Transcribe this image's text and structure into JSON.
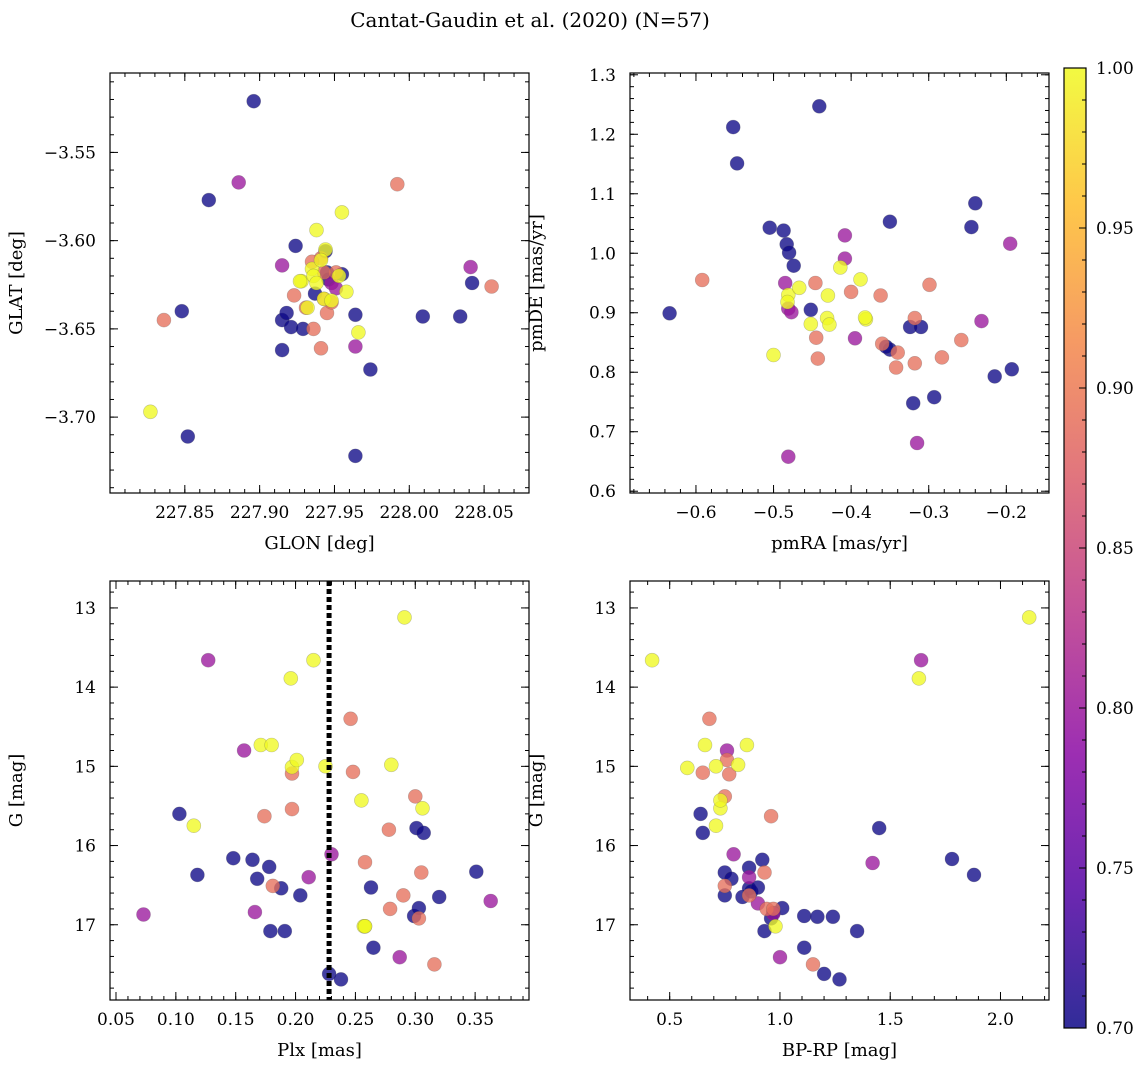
{
  "title": "Cantat-Gaudin et al. (2020) (N=57)",
  "colors": {
    "colormap": [
      "#0d0887",
      "#5302a3",
      "#8b0aa5",
      "#b83289",
      "#db5c68",
      "#f48849",
      "#febd2a",
      "#f0f921"
    ],
    "vline": "#000000",
    "marker_alpha": 0.78
  },
  "colorbar": {
    "min": 0.7,
    "max": 1.0,
    "ticks": [
      0.7,
      0.75,
      0.8,
      0.85,
      0.9,
      0.95,
      1.0
    ],
    "tick_labels": [
      "0.70",
      "0.75",
      "0.80",
      "0.85",
      "0.90",
      "0.95",
      "1.00"
    ]
  },
  "chart_data": [
    {
      "id": "pos",
      "type": "scatter",
      "xlabel": "GLON [deg]",
      "ylabel": "GLAT [deg]",
      "xlim": [
        227.8,
        228.08
      ],
      "ylim": [
        -3.743,
        -3.505
      ],
      "invert_y": false,
      "xticks": [
        227.85,
        227.9,
        227.95,
        228.0,
        228.05
      ],
      "xtick_labels": [
        "227.85",
        "227.90",
        "227.95",
        "228.00",
        "228.05"
      ],
      "yticks": [
        -3.7,
        -3.65,
        -3.6,
        -3.55
      ],
      "ytick_labels": [
        "−3.70",
        "−3.65",
        "−3.60",
        "−3.55"
      ],
      "x": [
        227.896,
        227.866,
        227.848,
        227.852,
        227.915,
        227.924,
        227.918,
        227.921,
        227.929,
        227.915,
        227.937,
        227.944,
        227.955,
        227.964,
        227.974,
        227.964,
        228.009,
        228.034,
        228.042,
        227.945,
        227.946,
        227.886,
        227.915,
        227.948,
        227.951,
        227.964,
        228.041,
        227.992,
        228.055,
        227.836,
        227.923,
        227.931,
        227.936,
        227.941,
        227.941,
        227.943,
        227.945,
        227.951,
        227.948,
        227.943,
        227.935,
        227.955,
        227.928,
        227.938,
        227.953,
        227.935,
        227.927,
        227.944,
        227.943,
        227.948,
        227.958,
        227.966,
        227.827,
        227.932,
        227.941,
        227.936,
        227.938
      ],
      "y": [
        -3.521,
        -3.577,
        -3.64,
        -3.711,
        -3.645,
        -3.603,
        -3.641,
        -3.649,
        -3.65,
        -3.662,
        -3.63,
        -3.606,
        -3.619,
        -3.642,
        -3.673,
        -3.722,
        -3.643,
        -3.643,
        -3.624,
        -3.618,
        -3.622,
        -3.567,
        -3.614,
        -3.624,
        -3.627,
        -3.66,
        -3.615,
        -3.568,
        -3.626,
        -3.645,
        -3.631,
        -3.638,
        -3.65,
        -3.661,
        -3.61,
        -3.633,
        -3.641,
        -3.618,
        -3.635,
        -3.618,
        -3.612,
        -3.584,
        -3.623,
        -3.594,
        -3.62,
        -3.616,
        -3.623,
        -3.605,
        -3.633,
        -3.634,
        -3.629,
        -3.652,
        -3.697,
        -3.638,
        -3.611,
        -3.62,
        -3.624
      ],
      "c": [
        0.7,
        0.7,
        0.7,
        0.7,
        0.7,
        0.7,
        0.7,
        0.7,
        0.7,
        0.7,
        0.7,
        0.7,
        0.7,
        0.7,
        0.7,
        0.7,
        0.7,
        0.7,
        0.7,
        0.7,
        0.7,
        0.8,
        0.8,
        0.8,
        0.8,
        0.8,
        0.8,
        0.89,
        0.89,
        0.89,
        0.89,
        0.89,
        0.89,
        0.89,
        0.89,
        0.89,
        0.89,
        0.89,
        0.89,
        0.89,
        0.89,
        1.0,
        1.0,
        1.0,
        1.0,
        1.0,
        1.0,
        1.0,
        1.0,
        1.0,
        1.0,
        1.0,
        1.0,
        1.0,
        1.0,
        1.0,
        1.0
      ]
    },
    {
      "id": "pm",
      "type": "scatter",
      "xlabel": "pmRA [mas/yr]",
      "ylabel": "pmDE [mas/yr]",
      "xlim": [
        -0.685,
        -0.145
      ],
      "ylim": [
        0.597,
        1.303
      ],
      "invert_y": false,
      "xticks": [
        -0.6,
        -0.5,
        -0.4,
        -0.3,
        -0.2
      ],
      "xtick_labels": [
        "−0.6",
        "−0.5",
        "−0.4",
        "−0.3",
        "−0.2"
      ],
      "yticks": [
        0.6,
        0.7,
        0.8,
        0.9,
        1.0,
        1.1,
        1.2,
        1.3
      ],
      "ytick_labels": [
        "0.6",
        "0.7",
        "0.8",
        "0.9",
        "1.0",
        "1.1",
        "1.2",
        "1.3"
      ],
      "x": [
        -0.634,
        -0.552,
        -0.547,
        -0.505,
        -0.487,
        -0.483,
        -0.48,
        -0.474,
        -0.452,
        -0.441,
        -0.35,
        -0.24,
        -0.245,
        -0.35,
        -0.324,
        -0.31,
        -0.293,
        -0.32,
        -0.215,
        -0.193,
        -0.355,
        -0.408,
        -0.485,
        -0.481,
        -0.477,
        -0.395,
        -0.315,
        -0.195,
        -0.232,
        -0.481,
        -0.408,
        -0.592,
        -0.446,
        -0.4,
        -0.362,
        -0.445,
        -0.36,
        -0.342,
        -0.34,
        -0.318,
        -0.283,
        -0.299,
        -0.258,
        -0.318,
        -0.443,
        -0.5,
        -0.481,
        -0.482,
        -0.467,
        -0.452,
        -0.43,
        -0.431,
        -0.428,
        -0.414,
        -0.388,
        -0.381,
        -0.382
      ],
      "y": [
        0.899,
        1.212,
        1.151,
        1.043,
        1.038,
        1.015,
        1.001,
        0.979,
        0.905,
        1.247,
        1.053,
        1.084,
        1.044,
        0.838,
        0.876,
        0.876,
        0.758,
        0.748,
        0.793,
        0.805,
        0.843,
        1.03,
        0.95,
        0.907,
        0.901,
        0.857,
        0.681,
        1.016,
        0.886,
        0.658,
        0.991,
        0.955,
        0.95,
        0.935,
        0.929,
        0.858,
        0.848,
        0.808,
        0.833,
        0.891,
        0.825,
        0.947,
        0.854,
        0.815,
        0.823,
        0.829,
        0.93,
        0.918,
        0.942,
        0.881,
        0.929,
        0.891,
        0.88,
        0.976,
        0.956,
        0.889,
        0.892
      ],
      "c": [
        0.7,
        0.7,
        0.7,
        0.7,
        0.7,
        0.7,
        0.7,
        0.7,
        0.7,
        0.7,
        0.7,
        0.7,
        0.7,
        0.7,
        0.7,
        0.7,
        0.7,
        0.7,
        0.7,
        0.7,
        0.7,
        0.8,
        0.8,
        0.8,
        0.8,
        0.8,
        0.8,
        0.8,
        0.8,
        0.8,
        0.8,
        0.89,
        0.89,
        0.89,
        0.89,
        0.89,
        0.89,
        0.89,
        0.89,
        0.89,
        0.89,
        0.89,
        0.89,
        0.89,
        0.89,
        1.0,
        1.0,
        1.0,
        1.0,
        1.0,
        1.0,
        1.0,
        1.0,
        1.0,
        1.0,
        1.0,
        1.0
      ]
    },
    {
      "id": "plx",
      "type": "scatter",
      "xlabel": "Plx [mas]",
      "ylabel": "G [mag]",
      "xlim": [
        0.045,
        0.395
      ],
      "ylim": [
        12.66,
        17.95
      ],
      "invert_y": true,
      "xticks": [
        0.05,
        0.1,
        0.15,
        0.2,
        0.25,
        0.3,
        0.35
      ],
      "xtick_labels": [
        "0.05",
        "0.10",
        "0.15",
        "0.20",
        "0.25",
        "0.30",
        "0.35"
      ],
      "yticks": [
        13,
        14,
        15,
        16,
        17
      ],
      "ytick_labels": [
        "13",
        "14",
        "15",
        "16",
        "17"
      ],
      "vline": 0.228,
      "x": [
        0.103,
        0.118,
        0.148,
        0.164,
        0.168,
        0.178,
        0.188,
        0.204,
        0.179,
        0.191,
        0.263,
        0.301,
        0.307,
        0.351,
        0.32,
        0.299,
        0.303,
        0.265,
        0.228,
        0.238,
        0.127,
        0.157,
        0.166,
        0.073,
        0.211,
        0.23,
        0.287,
        0.363,
        0.248,
        0.246,
        0.197,
        0.174,
        0.181,
        0.197,
        0.3,
        0.305,
        0.278,
        0.279,
        0.303,
        0.258,
        0.316,
        0.29,
        0.115,
        0.171,
        0.18,
        0.197,
        0.201,
        0.215,
        0.225,
        0.255,
        0.258,
        0.291,
        0.257,
        0.28,
        0.306,
        0.258,
        0.196
      ],
      "y": [
        15.6,
        16.37,
        16.16,
        16.18,
        16.42,
        16.27,
        16.54,
        16.63,
        17.08,
        17.08,
        16.53,
        15.78,
        15.84,
        16.33,
        16.65,
        16.89,
        16.79,
        17.29,
        17.62,
        17.69,
        13.66,
        14.8,
        16.84,
        16.87,
        16.4,
        16.11,
        17.41,
        16.7,
        15.07,
        14.4,
        15.09,
        15.63,
        16.51,
        15.54,
        15.38,
        16.34,
        15.8,
        16.8,
        16.92,
        16.21,
        17.5,
        16.63,
        15.75,
        14.73,
        14.73,
        15.01,
        14.92,
        13.66,
        15.0,
        15.43,
        17.02,
        13.12,
        17.02,
        14.98,
        15.53,
        17.02,
        13.89
      ],
      "c": [
        0.7,
        0.7,
        0.7,
        0.7,
        0.7,
        0.7,
        0.7,
        0.7,
        0.7,
        0.7,
        0.7,
        0.7,
        0.7,
        0.7,
        0.7,
        0.7,
        0.7,
        0.7,
        0.7,
        0.7,
        0.8,
        0.8,
        0.8,
        0.8,
        0.8,
        0.8,
        0.8,
        0.8,
        0.89,
        0.89,
        0.89,
        0.89,
        0.89,
        0.89,
        0.89,
        0.89,
        0.89,
        0.89,
        0.89,
        0.89,
        0.89,
        0.89,
        1.0,
        1.0,
        1.0,
        1.0,
        1.0,
        1.0,
        1.0,
        1.0,
        1.0,
        1.0,
        1.0,
        1.0,
        1.0,
        1.0,
        1.0
      ]
    },
    {
      "id": "cmd",
      "type": "scatter",
      "xlabel": "BP-RP [mag]",
      "ylabel": "G [mag]",
      "xlim": [
        0.32,
        2.22
      ],
      "ylim": [
        12.66,
        17.95
      ],
      "invert_y": true,
      "xticks": [
        0.5,
        1.0,
        1.5,
        2.0
      ],
      "xtick_labels": [
        "0.5",
        "1.0",
        "1.5",
        "2.0"
      ],
      "yticks": [
        13,
        14,
        15,
        16,
        17
      ],
      "ytick_labels": [
        "13",
        "14",
        "15",
        "16",
        "17"
      ],
      "x": [
        0.64,
        0.65,
        0.75,
        0.78,
        0.75,
        0.83,
        0.86,
        0.86,
        0.87,
        0.9,
        0.92,
        0.93,
        0.97,
        1.01,
        0.96,
        1.11,
        1.11,
        1.17,
        1.2,
        1.24,
        1.27,
        1.35,
        1.45,
        1.78,
        1.88,
        0.76,
        0.79,
        0.86,
        0.9,
        0.97,
        1.0,
        1.42,
        1.64,
        0.68,
        0.65,
        0.77,
        0.75,
        0.76,
        0.96,
        0.93,
        0.75,
        0.86,
        0.94,
        0.97,
        1.15,
        0.42,
        0.58,
        0.66,
        0.85,
        0.71,
        0.73,
        0.81,
        0.73,
        0.71,
        0.98,
        1.63,
        2.13
      ],
      "y": [
        15.6,
        15.84,
        16.34,
        16.42,
        16.63,
        16.65,
        16.28,
        16.54,
        16.58,
        16.53,
        16.18,
        17.08,
        16.85,
        16.79,
        16.92,
        17.29,
        16.89,
        16.9,
        17.62,
        16.9,
        17.69,
        17.08,
        15.78,
        16.17,
        16.37,
        14.8,
        16.11,
        16.4,
        16.73,
        16.86,
        17.41,
        16.22,
        13.66,
        14.4,
        15.08,
        15.1,
        15.38,
        14.92,
        15.63,
        16.34,
        16.51,
        16.63,
        16.8,
        16.8,
        17.5,
        13.66,
        15.02,
        14.73,
        14.73,
        15.0,
        15.53,
        14.98,
        15.43,
        15.75,
        17.02,
        13.89,
        13.12
      ],
      "c": [
        0.7,
        0.7,
        0.7,
        0.7,
        0.7,
        0.7,
        0.7,
        0.7,
        0.7,
        0.7,
        0.7,
        0.7,
        0.7,
        0.7,
        0.7,
        0.7,
        0.7,
        0.7,
        0.7,
        0.7,
        0.7,
        0.7,
        0.7,
        0.7,
        0.7,
        0.8,
        0.8,
        0.8,
        0.8,
        0.8,
        0.8,
        0.8,
        0.8,
        0.89,
        0.89,
        0.89,
        0.89,
        0.89,
        0.89,
        0.89,
        0.89,
        0.89,
        0.89,
        0.89,
        0.89,
        1.0,
        1.0,
        1.0,
        1.0,
        1.0,
        1.0,
        1.0,
        1.0,
        1.0,
        1.0,
        1.0,
        1.0
      ]
    }
  ]
}
